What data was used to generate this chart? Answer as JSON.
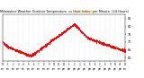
{
  "title_black": "Milwaukee Weather Outdoor Temperature",
  "title_orange": "vs Heat Index",
  "title_black2": "per Minute",
  "title_black3": "(24 Hours)",
  "title_fontsize": 2.5,
  "bg_color": "#ffffff",
  "dot_color": "#ff0000",
  "dot_size": 0.5,
  "ylabel_fontsize": 2.5,
  "xlabel_fontsize": 1.8,
  "ylim": [
    58,
    88
  ],
  "yticks": [
    60,
    65,
    70,
    75,
    80,
    85
  ],
  "grid_color": "#aaaaaa",
  "grid_linestyle": ":",
  "grid_linewidth": 0.3
}
